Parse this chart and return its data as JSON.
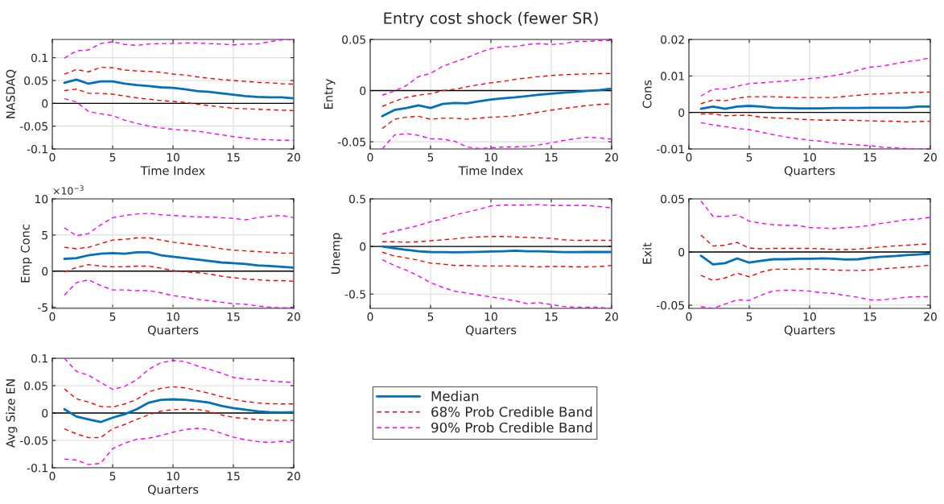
{
  "chart_data": [
    {
      "type": "line",
      "xlabel": "Time Index",
      "ylabel": "NASDAQ",
      "x": [
        1,
        2,
        3,
        4,
        5,
        6,
        7,
        8,
        9,
        10,
        11,
        12,
        13,
        14,
        15,
        16,
        17,
        18,
        19,
        20
      ],
      "xlim": [
        0,
        20
      ],
      "xticks": [
        0,
        5,
        10,
        15,
        20
      ],
      "ylim": [
        -0.1,
        0.14
      ],
      "yticks": [
        -0.1,
        -0.05,
        0,
        0.05,
        0.1
      ],
      "grid": true,
      "ref_lines": [
        {
          "axis": "y",
          "value": 0,
          "color": "#000000"
        }
      ],
      "series": [
        {
          "color": "#0072bd",
          "line_style": "solid",
          "values": [
            0.045,
            0.052,
            0.043,
            0.048,
            0.048,
            0.043,
            0.04,
            0.038,
            0.035,
            0.034,
            0.031,
            0.027,
            0.025,
            0.022,
            0.019,
            0.016,
            0.014,
            0.013,
            0.013,
            0.011
          ]
        },
        {
          "color": "#ff0000",
          "line_style": "dashed",
          "values": [
            0.064,
            0.074,
            0.069,
            0.079,
            0.078,
            0.073,
            0.071,
            0.07,
            0.068,
            0.064,
            0.062,
            0.058,
            0.055,
            0.052,
            0.05,
            0.048,
            0.046,
            0.045,
            0.043,
            0.042
          ]
        },
        {
          "color": "#ff0000",
          "line_style": "dashed",
          "values": [
            0.028,
            0.031,
            0.022,
            0.022,
            0.02,
            0.016,
            0.012,
            0.009,
            0.006,
            0.004,
            0.002,
            -0.002,
            -0.005,
            -0.008,
            -0.011,
            -0.012,
            -0.013,
            -0.014,
            -0.015,
            -0.016
          ]
        },
        {
          "color": "#ff00ff",
          "line_style": "dashed",
          "values": [
            0.099,
            0.115,
            0.117,
            0.131,
            0.135,
            0.129,
            0.127,
            0.13,
            0.131,
            0.131,
            0.132,
            0.132,
            0.131,
            0.13,
            0.128,
            0.13,
            0.13,
            0.135,
            0.139,
            0.14
          ]
        },
        {
          "color": "#ff00ff",
          "line_style": "dashed",
          "values": [
            0.01,
            0.003,
            -0.018,
            -0.023,
            -0.027,
            -0.037,
            -0.044,
            -0.05,
            -0.054,
            -0.057,
            -0.059,
            -0.061,
            -0.065,
            -0.069,
            -0.073,
            -0.076,
            -0.079,
            -0.08,
            -0.081,
            -0.081
          ]
        }
      ]
    },
    {
      "type": "line",
      "title": "Entry cost shock (fewer SR)",
      "xlabel": "Time Index",
      "ylabel": "Entry",
      "x": [
        1,
        2,
        3,
        4,
        5,
        6,
        7,
        8,
        9,
        10,
        11,
        12,
        13,
        14,
        15,
        16,
        17,
        18,
        19,
        20
      ],
      "xlim": [
        0,
        20
      ],
      "xticks": [
        0,
        5,
        10,
        15,
        20
      ],
      "ylim": [
        -0.057,
        0.05
      ],
      "yticks": [
        -0.05,
        0,
        0.05
      ],
      "grid": true,
      "ref_lines": [
        {
          "axis": "y",
          "value": 0,
          "color": "#000000"
        }
      ],
      "series": [
        {
          "color": "#0072bd",
          "line_style": "solid",
          "values": [
            -0.025,
            -0.019,
            -0.017,
            -0.0145,
            -0.017,
            -0.013,
            -0.012,
            -0.0125,
            -0.0105,
            -0.0087,
            -0.0076,
            -0.0066,
            -0.0053,
            -0.004,
            -0.003,
            -0.002,
            -0.0013,
            -0.0003,
            0.0005,
            0.002
          ]
        },
        {
          "color": "#ff0000",
          "line_style": "dashed",
          "values": [
            -0.0155,
            -0.0105,
            -0.0066,
            -0.0045,
            -0.003,
            0,
            0.0013,
            0.0037,
            0.0058,
            0.0076,
            0.009,
            0.011,
            0.0124,
            0.0137,
            0.0147,
            0.0155,
            0.016,
            0.0163,
            0.0166,
            0.0168
          ]
        },
        {
          "color": "#ff0000",
          "line_style": "dashed",
          "values": [
            -0.037,
            -0.028,
            -0.026,
            -0.025,
            -0.028,
            -0.027,
            -0.027,
            -0.028,
            -0.027,
            -0.026,
            -0.0255,
            -0.0245,
            -0.023,
            -0.021,
            -0.019,
            -0.0175,
            -0.016,
            -0.0145,
            -0.0135,
            -0.013
          ]
        },
        {
          "color": "#ff00ff",
          "line_style": "dashed",
          "values": [
            -0.0045,
            -0.0005,
            0.005,
            0.0137,
            0.0168,
            0.0237,
            0.028,
            0.032,
            0.037,
            0.041,
            0.043,
            0.043,
            0.045,
            0.046,
            0.045,
            0.046,
            0.048,
            0.048,
            0.049,
            0.049
          ]
        },
        {
          "color": "#ff00ff",
          "line_style": "dashed",
          "values": [
            -0.057,
            -0.0435,
            -0.042,
            -0.0437,
            -0.047,
            -0.0474,
            -0.0495,
            -0.055,
            -0.0566,
            -0.056,
            -0.055,
            -0.055,
            -0.0545,
            -0.053,
            -0.051,
            -0.0487,
            -0.047,
            -0.0455,
            -0.0463,
            -0.0474
          ]
        }
      ]
    },
    {
      "type": "line",
      "xlabel": "Quarters",
      "ylabel": "Cons",
      "x": [
        1,
        2,
        3,
        4,
        5,
        6,
        7,
        8,
        9,
        10,
        11,
        12,
        13,
        14,
        15,
        16,
        17,
        18,
        19,
        20
      ],
      "xlim": [
        0,
        20
      ],
      "xticks": [
        0,
        5,
        10,
        15,
        20
      ],
      "ylim": [
        -0.01,
        0.02
      ],
      "yticks": [
        -0.01,
        0,
        0.01,
        0.02
      ],
      "grid": true,
      "ref_lines": [
        {
          "axis": "y",
          "value": 0,
          "color": "#000000"
        }
      ],
      "series": [
        {
          "color": "#0072bd",
          "line_style": "solid",
          "values": [
            0.001,
            0.0016,
            0.001,
            0.0016,
            0.0018,
            0.0016,
            0.0013,
            0.0012,
            0.0011,
            0.0011,
            0.0011,
            0.0012,
            0.0012,
            0.0012,
            0.0013,
            0.0013,
            0.0013,
            0.0013,
            0.0016,
            0.0016
          ]
        },
        {
          "color": "#ff0000",
          "line_style": "dashed",
          "values": [
            0.0024,
            0.0034,
            0.0032,
            0.0039,
            0.0043,
            0.0043,
            0.0043,
            0.0042,
            0.0041,
            0.0041,
            0.0041,
            0.0041,
            0.0044,
            0.0047,
            0.005,
            0.0051,
            0.0053,
            0.0054,
            0.0055,
            0.0056
          ]
        },
        {
          "color": "#ff0000",
          "line_style": "dashed",
          "values": [
            -0.0004,
            -0.0004,
            -0.0009,
            -0.0008,
            -0.0008,
            -0.0013,
            -0.0015,
            -0.0016,
            -0.0018,
            -0.002,
            -0.0021,
            -0.0021,
            -0.0021,
            -0.0022,
            -0.0023,
            -0.0024,
            -0.0024,
            -0.0026,
            -0.0025,
            -0.0024
          ]
        },
        {
          "color": "#ff00ff",
          "line_style": "dashed",
          "values": [
            0.0045,
            0.0064,
            0.0064,
            0.0072,
            0.0079,
            0.0081,
            0.0084,
            0.0086,
            0.0089,
            0.0093,
            0.0096,
            0.0101,
            0.0107,
            0.0116,
            0.0124,
            0.0127,
            0.0133,
            0.0139,
            0.0143,
            0.015
          ]
        },
        {
          "color": "#ff00ff",
          "line_style": "dashed",
          "values": [
            -0.0028,
            -0.0034,
            -0.0039,
            -0.0044,
            -0.0047,
            -0.0054,
            -0.0061,
            -0.0067,
            -0.0072,
            -0.0076,
            -0.0079,
            -0.0084,
            -0.0087,
            -0.0089,
            -0.0091,
            -0.0095,
            -0.0097,
            -0.0099,
            -0.01,
            -0.01
          ]
        }
      ]
    },
    {
      "type": "line",
      "xlabel": "Quarters",
      "ylabel": "Emp Conc",
      "annotations": [
        "×10$^{−3}$"
      ],
      "x": [
        1,
        2,
        3,
        4,
        5,
        6,
        7,
        8,
        9,
        10,
        11,
        12,
        13,
        14,
        15,
        16,
        17,
        18,
        19,
        20
      ],
      "xlim": [
        0,
        20
      ],
      "xticks": [
        0,
        5,
        10,
        15,
        20
      ],
      "ylim": [
        -5.15,
        10
      ],
      "yticks": [
        -5,
        0,
        5,
        10
      ],
      "grid": true,
      "ref_lines": [
        {
          "axis": "y",
          "value": 0,
          "color": "#000000"
        }
      ],
      "series": [
        {
          "color": "#0072bd",
          "line_style": "solid",
          "values": [
            1.7,
            1.8,
            2.2,
            2.4,
            2.5,
            2.4,
            2.6,
            2.6,
            2.2,
            2.0,
            1.8,
            1.6,
            1.4,
            1.2,
            1.1,
            1.0,
            0.8,
            0.7,
            0.6,
            0.5
          ]
        },
        {
          "color": "#ff0000",
          "line_style": "dashed",
          "values": [
            3.3,
            3.1,
            3.3,
            3.8,
            4.3,
            4.4,
            4.6,
            4.6,
            4.3,
            4.0,
            3.8,
            3.6,
            3.4,
            3.1,
            2.9,
            2.8,
            2.7,
            2.6,
            2.5,
            2.5
          ]
        },
        {
          "color": "#ff0000",
          "line_style": "dashed",
          "values": [
            -0.1,
            0.5,
            0.9,
            0.7,
            0.6,
            0.6,
            0.7,
            0.7,
            0.4,
            0.1,
            -0.1,
            -0.2,
            -0.4,
            -0.7,
            -0.9,
            -1.1,
            -1.2,
            -1.3,
            -1.3,
            -1.4
          ]
        },
        {
          "color": "#ff00ff",
          "line_style": "dashed",
          "values": [
            6.0,
            4.9,
            5.2,
            6.4,
            7.4,
            7.7,
            7.9,
            8.0,
            7.8,
            7.7,
            7.6,
            7.5,
            7.5,
            7.4,
            7.3,
            7.1,
            7.4,
            7.6,
            7.7,
            7.4
          ]
        },
        {
          "color": "#ff00ff",
          "line_style": "dashed",
          "values": [
            -3.3,
            -1.6,
            -1.2,
            -2.0,
            -2.6,
            -2.6,
            -2.7,
            -2.7,
            -3.0,
            -3.4,
            -3.6,
            -3.9,
            -4.1,
            -4.3,
            -4.5,
            -4.6,
            -4.8,
            -5.0,
            -5.1,
            -5.1
          ]
        }
      ]
    },
    {
      "type": "line",
      "xlabel": "Quarters",
      "ylabel": "Unemp",
      "x": [
        1,
        2,
        3,
        4,
        5,
        6,
        7,
        8,
        9,
        10,
        11,
        12,
        13,
        14,
        15,
        16,
        17,
        18,
        19,
        20
      ],
      "xlim": [
        0,
        20
      ],
      "xticks": [
        0,
        5,
        10,
        15,
        20
      ],
      "ylim": [
        -0.65,
        0.5
      ],
      "yticks": [
        -0.5,
        0,
        0.5
      ],
      "grid": true,
      "ref_lines": [
        {
          "axis": "y",
          "value": 0,
          "color": "#000000"
        }
      ],
      "series": [
        {
          "color": "#0072bd",
          "line_style": "solid",
          "values": [
            0,
            -0.02,
            -0.035,
            -0.05,
            -0.058,
            -0.06,
            -0.062,
            -0.06,
            -0.057,
            -0.053,
            -0.05,
            -0.045,
            -0.05,
            -0.05,
            -0.055,
            -0.06,
            -0.06,
            -0.058,
            -0.058,
            -0.058
          ]
        },
        {
          "color": "#ff0000",
          "line_style": "dashed",
          "values": [
            0.05,
            0.05,
            0.045,
            0.05,
            0.06,
            0.07,
            0.08,
            0.095,
            0.1,
            0.105,
            0.105,
            0.1,
            0.095,
            0.09,
            0.085,
            0.07,
            0.065,
            0.065,
            0.065,
            0.065
          ]
        },
        {
          "color": "#ff0000",
          "line_style": "dashed",
          "values": [
            -0.06,
            -0.1,
            -0.12,
            -0.145,
            -0.175,
            -0.185,
            -0.2,
            -0.2,
            -0.205,
            -0.205,
            -0.205,
            -0.205,
            -0.21,
            -0.215,
            -0.21,
            -0.21,
            -0.215,
            -0.215,
            -0.21,
            -0.2
          ]
        },
        {
          "color": "#ff00ff",
          "line_style": "dashed",
          "values": [
            0.13,
            0.16,
            0.19,
            0.22,
            0.26,
            0.29,
            0.33,
            0.36,
            0.39,
            0.425,
            0.435,
            0.435,
            0.435,
            0.44,
            0.43,
            0.43,
            0.43,
            0.43,
            0.42,
            0.405
          ]
        },
        {
          "color": "#ff00ff",
          "line_style": "dashed",
          "values": [
            -0.14,
            -0.2,
            -0.25,
            -0.31,
            -0.38,
            -0.43,
            -0.47,
            -0.49,
            -0.51,
            -0.53,
            -0.55,
            -0.57,
            -0.6,
            -0.59,
            -0.61,
            -0.63,
            -0.64,
            -0.64,
            -0.64,
            -0.65
          ]
        }
      ]
    },
    {
      "type": "line",
      "xlabel": "Quarters",
      "ylabel": "Exit",
      "x": [
        1,
        2,
        3,
        4,
        5,
        6,
        7,
        8,
        9,
        10,
        11,
        12,
        13,
        14,
        15,
        16,
        17,
        18,
        19,
        20
      ],
      "xlim": [
        0,
        20
      ],
      "xticks": [
        0,
        5,
        10,
        15,
        20
      ],
      "ylim": [
        -0.053,
        0.05
      ],
      "yticks": [
        -0.05,
        0,
        0.05
      ],
      "grid": true,
      "ref_lines": [
        {
          "axis": "y",
          "value": 0,
          "color": "#000000"
        }
      ],
      "series": [
        {
          "color": "#0072bd",
          "line_style": "solid",
          "values": [
            -0.0035,
            -0.0117,
            -0.0105,
            -0.006,
            -0.01,
            -0.0083,
            -0.0068,
            -0.0068,
            -0.0064,
            -0.0064,
            -0.006,
            -0.0064,
            -0.0071,
            -0.0068,
            -0.0053,
            -0.0045,
            -0.0038,
            -0.003,
            -0.0023,
            -0.0015
          ]
        },
        {
          "color": "#ff0000",
          "line_style": "dashed",
          "values": [
            0.016,
            0.0056,
            0.0064,
            0.009,
            0.0038,
            0.003,
            0.0034,
            0.0034,
            0.0034,
            0.0034,
            0.003,
            0.0023,
            0.0023,
            0.0026,
            0.0038,
            0.0049,
            0.0056,
            0.0064,
            0.0071,
            0.0075
          ]
        },
        {
          "color": "#ff0000",
          "line_style": "dashed",
          "values": [
            -0.022,
            -0.0267,
            -0.0244,
            -0.02,
            -0.0233,
            -0.0188,
            -0.0162,
            -0.0162,
            -0.0162,
            -0.0158,
            -0.0162,
            -0.017,
            -0.0173,
            -0.0173,
            -0.017,
            -0.0158,
            -0.015,
            -0.0143,
            -0.0135,
            -0.0124
          ]
        },
        {
          "color": "#ff00ff",
          "line_style": "dashed",
          "values": [
            0.048,
            0.0335,
            0.0335,
            0.035,
            0.029,
            0.027,
            0.0256,
            0.025,
            0.025,
            0.023,
            0.0226,
            0.022,
            0.023,
            0.0237,
            0.025,
            0.027,
            0.0286,
            0.0305,
            0.031,
            0.0327
          ]
        },
        {
          "color": "#ff00ff",
          "line_style": "dashed",
          "values": [
            -0.0515,
            -0.053,
            -0.049,
            -0.045,
            -0.0455,
            -0.0406,
            -0.0365,
            -0.036,
            -0.036,
            -0.0368,
            -0.0383,
            -0.039,
            -0.041,
            -0.0425,
            -0.045,
            -0.045,
            -0.044,
            -0.0425,
            -0.042,
            -0.042
          ]
        }
      ]
    },
    {
      "type": "line",
      "xlabel": "Quarters",
      "ylabel": "Avg Size EN",
      "x": [
        1,
        2,
        3,
        4,
        5,
        6,
        7,
        8,
        9,
        10,
        11,
        12,
        13,
        14,
        15,
        16,
        17,
        18,
        19,
        20
      ],
      "xlim": [
        0,
        20
      ],
      "xticks": [
        0,
        5,
        10,
        15,
        20
      ],
      "ylim": [
        -0.1,
        0.1
      ],
      "yticks": [
        -0.1,
        -0.05,
        0,
        0.05,
        0.1
      ],
      "grid": true,
      "legend": "right",
      "ref_lines": [
        {
          "axis": "y",
          "value": 0,
          "color": "#000000"
        }
      ],
      "series": [
        {
          "name": "Median",
          "color": "#0072bd",
          "line_style": "solid",
          "values": [
            0.007,
            -0.0065,
            -0.0115,
            -0.0165,
            -0.0085,
            -0.002,
            0.007,
            0.019,
            0.024,
            0.025,
            0.024,
            0.022,
            0.019,
            0.013,
            0.009,
            0.006,
            0.003,
            0.0015,
            0.001,
            0.0015
          ]
        },
        {
          "name": "68% Prob Credible Band",
          "color": "#ff0000",
          "line_style": "dashed",
          "values": [
            0.044,
            0.026,
            0.02,
            0.012,
            0.011,
            0.0165,
            0.025,
            0.039,
            0.045,
            0.048,
            0.046,
            0.041,
            0.036,
            0.03,
            0.025,
            0.021,
            0.0185,
            0.017,
            0.0165,
            0.0165
          ]
        },
        {
          "color": "#ff0000",
          "line_style": "dashed",
          "values": [
            -0.029,
            -0.038,
            -0.045,
            -0.045,
            -0.0285,
            -0.021,
            -0.0115,
            -0.003,
            0.0035,
            0.006,
            0.007,
            0.0065,
            0.003,
            -0.0035,
            -0.008,
            -0.01,
            -0.012,
            -0.0135,
            -0.0135,
            -0.0135
          ]
        },
        {
          "name": "90% Prob Credible Band",
          "color": "#ff00ff",
          "line_style": "dashed",
          "values": [
            0.1,
            0.076,
            0.069,
            0.056,
            0.043,
            0.0485,
            0.061,
            0.08,
            0.092,
            0.096,
            0.094,
            0.086,
            0.08,
            0.073,
            0.065,
            0.062,
            0.061,
            0.0585,
            0.057,
            0.056
          ]
        },
        {
          "color": "#ff00ff",
          "line_style": "dashed",
          "values": [
            -0.084,
            -0.086,
            -0.094,
            -0.092,
            -0.065,
            -0.055,
            -0.048,
            -0.046,
            -0.041,
            -0.035,
            -0.03,
            -0.028,
            -0.03,
            -0.037,
            -0.044,
            -0.049,
            -0.052,
            -0.054,
            -0.0515,
            -0.054
          ]
        }
      ]
    }
  ]
}
